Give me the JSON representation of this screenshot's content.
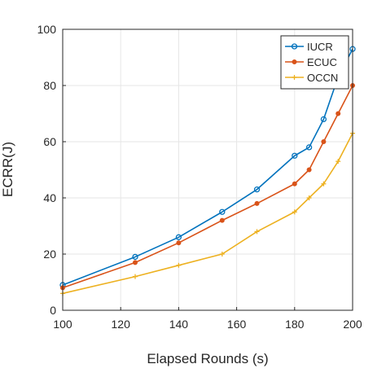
{
  "chart_data": {
    "type": "line",
    "xlabel": "Elapsed Rounds (s)",
    "ylabel": "ECRR(J)",
    "xlim": [
      100,
      200
    ],
    "ylim": [
      0,
      100
    ],
    "xticks": [
      "100",
      "120",
      "140",
      "160",
      "180",
      "200"
    ],
    "yticks": [
      "0",
      "20",
      "40",
      "60",
      "80",
      "100"
    ],
    "grid": true,
    "legend_position": "top-right",
    "series": [
      {
        "name": "IUCR",
        "color": "#0072BD",
        "marker": "circle",
        "x": [
          100,
          125,
          140,
          155,
          167,
          180,
          185,
          190,
          195,
          200
        ],
        "y": [
          9,
          19,
          26,
          35,
          43,
          55,
          58,
          68,
          83,
          93
        ]
      },
      {
        "name": "ECUC",
        "color": "#D95319",
        "marker": "dot",
        "x": [
          100,
          125,
          140,
          155,
          167,
          180,
          185,
          190,
          195,
          200
        ],
        "y": [
          8,
          17,
          24,
          32,
          38,
          45,
          50,
          60,
          70,
          80
        ]
      },
      {
        "name": "OCCN",
        "color": "#EDB120",
        "marker": "plus",
        "x": [
          100,
          125,
          140,
          155,
          167,
          180,
          185,
          190,
          195,
          200
        ],
        "y": [
          6,
          12,
          16,
          20,
          28,
          35,
          40,
          45,
          53,
          63
        ]
      }
    ]
  }
}
